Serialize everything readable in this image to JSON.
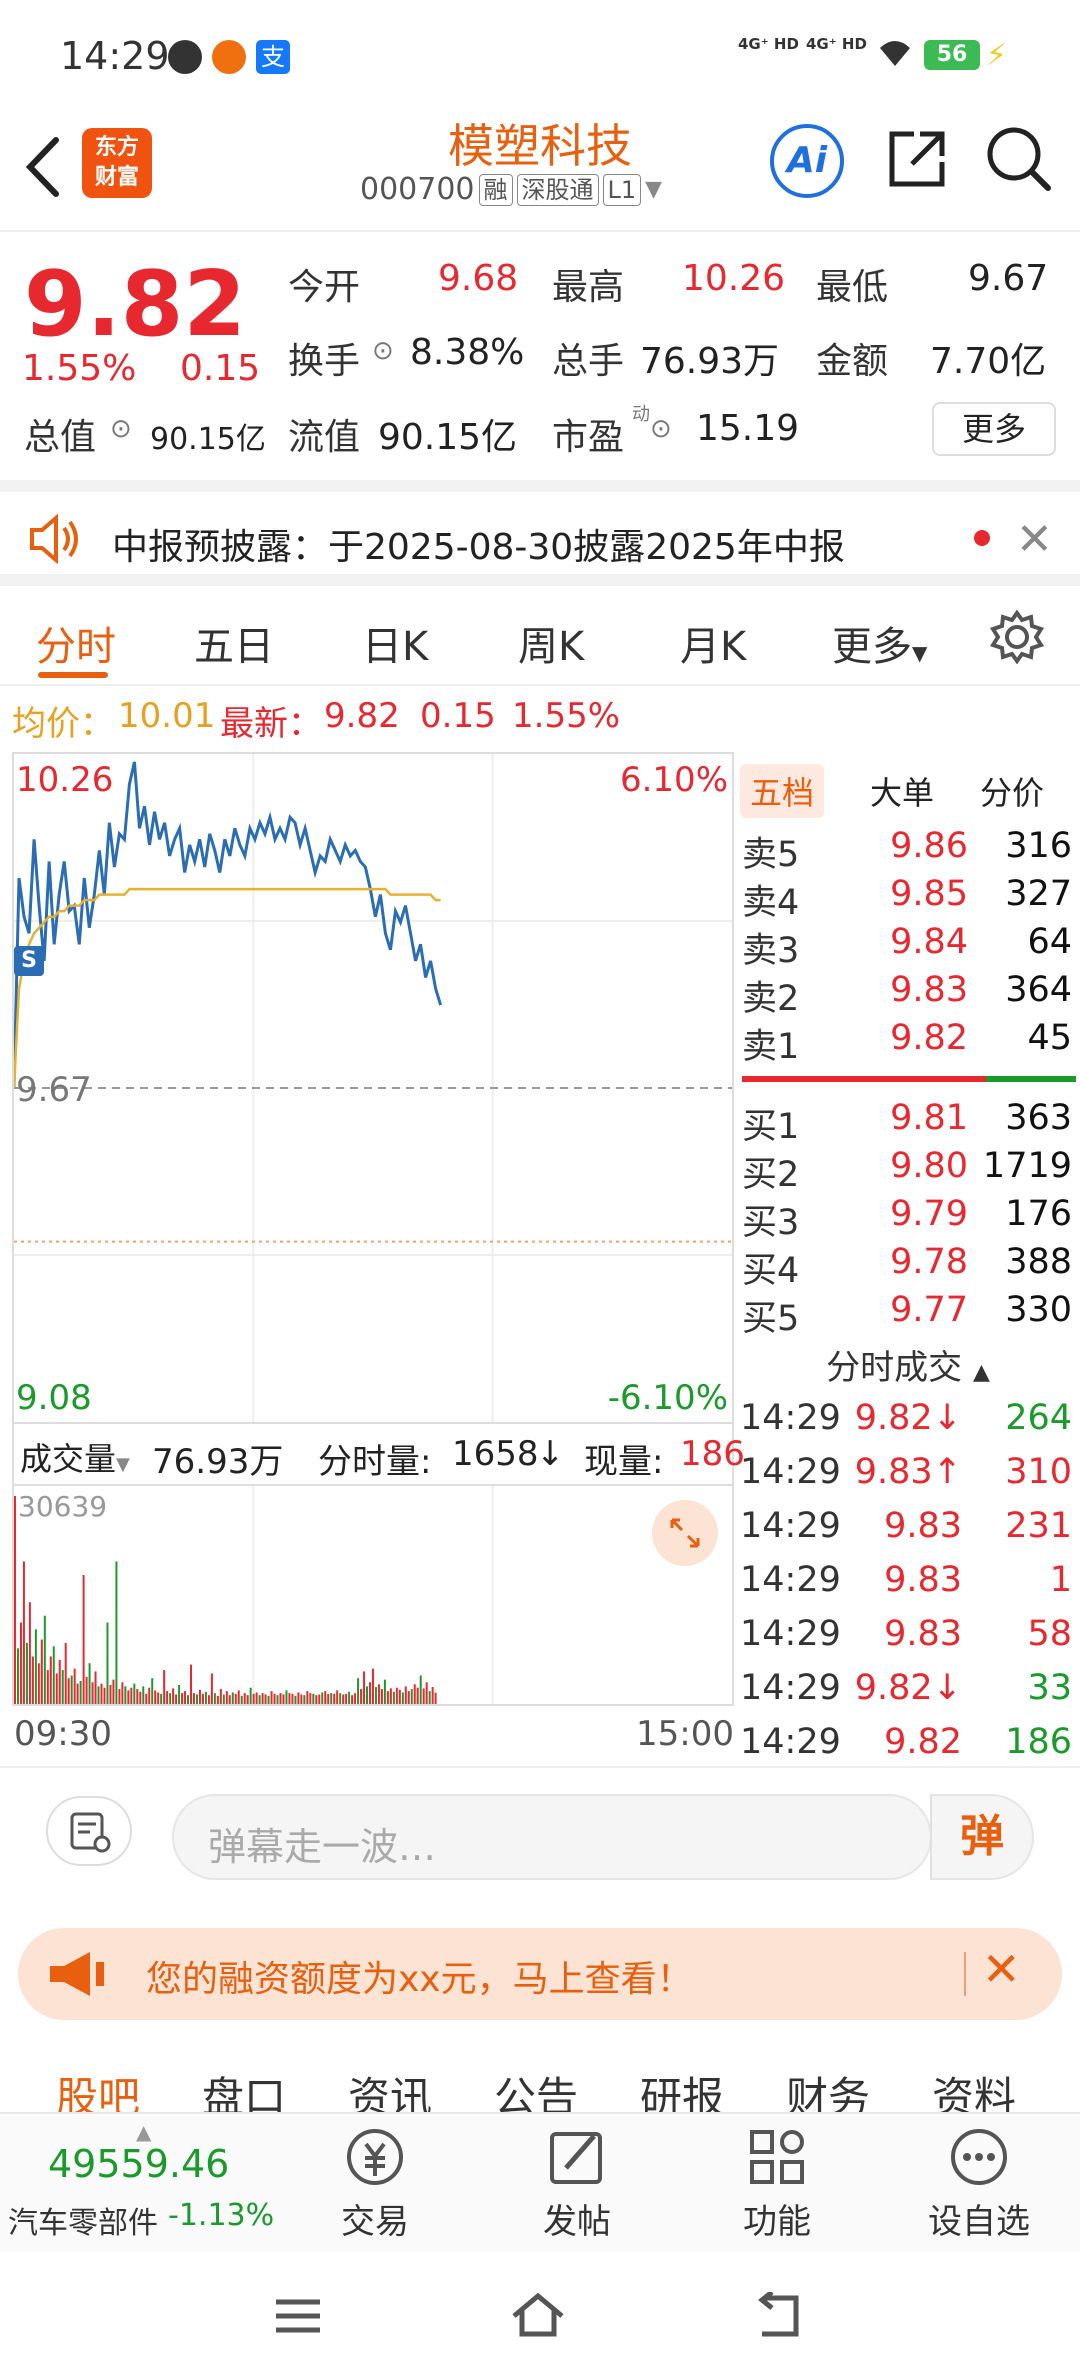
{
  "status_bar": {
    "time": "14:29",
    "net1": "4G⁺ HD",
    "net2": "4G⁺ HD",
    "battery": "56"
  },
  "header": {
    "logo_text_1": "东方",
    "logo_text_2": "财富",
    "stock_name": "模塑科技",
    "stock_code": "000700",
    "tags": [
      "融",
      "深股通",
      "L1"
    ],
    "icons": [
      "back-arrow-icon",
      "ai-icon",
      "share-icon",
      "search-icon"
    ]
  },
  "quote": {
    "price": "9.82",
    "change_pct": "1.55%",
    "change": "0.15",
    "open_label": "今开",
    "open": "9.68",
    "high_label": "最高",
    "high": "10.26",
    "low_label": "最低",
    "low": "9.67",
    "turnover_label": "换手",
    "turnover": "8.38%",
    "volume_label": "总手",
    "volume": "76.93万",
    "amount_label": "金额",
    "amount": "7.70亿",
    "mcap_label": "总值",
    "mcap": "90.15亿",
    "float_label": "流值",
    "float": "90.15亿",
    "pe_label": "市盈",
    "pe_sup": "动",
    "pe": "15.19",
    "more_label": "更多"
  },
  "notice": {
    "text": "中报预披露：于2025-08-30披露2025年中报"
  },
  "tabs": {
    "items": [
      "分时",
      "五日",
      "日K",
      "周K",
      "月K",
      "更多"
    ],
    "active": "分时"
  },
  "avg_line": {
    "avg_label": "均价：",
    "avg": "10.01",
    "latest_label": "最新：",
    "latest": "9.82",
    "change": "0.15",
    "change_pct": "1.55%"
  },
  "chart_data": {
    "type": "line",
    "xlabel": "",
    "ylabel": "",
    "x_ticks": [
      "09:30",
      "15:00"
    ],
    "y_max": 10.26,
    "y_min": 9.08,
    "y_max_pct": "6.10%",
    "y_min_pct": "-6.10%",
    "prev_close": 9.67,
    "price_max_label": "10.26",
    "price_min_label": "9.08",
    "prev_close_label": "9.67",
    "series": [
      {
        "values": [
          9.67,
          10.05,
          9.98,
          9.95,
          10.12,
          10.0,
          9.9,
          10.08,
          9.93,
          10.02,
          10.08,
          9.99,
          10.0,
          9.93,
          10.05,
          9.96,
          10.02,
          10.1,
          10.02,
          10.15,
          10.07,
          10.13,
          10.12,
          10.22,
          10.26,
          10.14,
          10.18,
          10.11,
          10.17,
          10.12,
          10.15,
          10.09,
          10.12,
          10.14,
          10.06,
          10.11,
          10.08,
          10.12,
          10.07,
          10.13,
          10.1,
          10.06,
          10.12,
          10.09,
          10.14,
          10.11,
          10.09,
          10.14,
          10.12,
          10.15,
          10.13,
          10.16,
          10.12,
          10.14,
          10.12,
          10.16,
          10.15,
          10.11,
          10.14,
          10.1,
          10.06,
          10.09,
          10.08,
          10.12,
          10.1,
          10.08,
          10.11,
          10.09,
          10.1,
          10.08,
          10.07,
          10.03,
          9.98,
          10.02,
          9.95,
          9.92,
          9.99,
          9.97,
          10.0,
          9.95,
          9.9,
          9.93,
          9.87,
          9.9,
          9.85,
          9.82
        ]
      },
      {
        "values": [
          9.67,
          9.85,
          9.9,
          9.93,
          9.95,
          9.96,
          9.97,
          9.98,
          9.98,
          9.99,
          9.99,
          10.0,
          10.0,
          10.0,
          10.01,
          10.01,
          10.01,
          10.02,
          10.02,
          10.02,
          10.02,
          10.02,
          10.02,
          10.03,
          10.03,
          10.03,
          10.03,
          10.03,
          10.03,
          10.03,
          10.03,
          10.03,
          10.03,
          10.03,
          10.03,
          10.03,
          10.03,
          10.03,
          10.03,
          10.03,
          10.03,
          10.03,
          10.03,
          10.03,
          10.03,
          10.03,
          10.03,
          10.03,
          10.03,
          10.03,
          10.03,
          10.03,
          10.03,
          10.03,
          10.03,
          10.03,
          10.03,
          10.03,
          10.03,
          10.03,
          10.03,
          10.03,
          10.03,
          10.03,
          10.03,
          10.03,
          10.03,
          10.03,
          10.03,
          10.03,
          10.03,
          10.03,
          10.03,
          10.03,
          10.03,
          10.02,
          10.02,
          10.02,
          10.02,
          10.02,
          10.02,
          10.02,
          10.02,
          10.02,
          10.01,
          10.01
        ]
      }
    ],
    "colors": {
      "price": "#2a6db5",
      "avg": "#e8b030",
      "up": "#e8282f",
      "down": "#1a9a2a"
    }
  },
  "volume": {
    "label": "成交量",
    "total": "76.93万",
    "minute_label": "分时量:",
    "minute": "1658",
    "current_label": "现量:",
    "current": "186",
    "max_label": "30639",
    "bars": [
      30639,
      8200,
      12000,
      21000,
      9000,
      15000,
      7000,
      11000,
      6000,
      9500,
      13000,
      5000,
      7000,
      8500,
      4500,
      6500,
      5000,
      9000,
      3800,
      4200,
      5200,
      3000,
      3400,
      19000,
      4000,
      6000,
      3200,
      4800,
      2600,
      3000,
      2400,
      12000,
      2800,
      3600,
      21000,
      2200,
      3200,
      2600,
      2000,
      2400,
      3000,
      2200,
      1800,
      2600,
      1500,
      2400,
      3800,
      2000,
      1700,
      1500,
      5000,
      1900,
      1600,
      2300,
      1400,
      2800,
      1600,
      1900,
      1300,
      5800,
      1600,
      1400,
      2100,
      1500,
      1800,
      1300,
      4500,
      1600,
      1200,
      2200,
      1400,
      1900,
      1300,
      1700,
      1500,
      2000,
      1200,
      1600,
      1300,
      2400,
      1500,
      1700,
      1300,
      1600,
      1400,
      1200,
      1900,
      1500,
      1300,
      1600,
      1400,
      2000,
      1600,
      1500,
      1200,
      1700,
      1400,
      1300,
      1900,
      1600,
      1500,
      1300,
      1400,
      1700,
      1900,
      1500,
      1600,
      1500,
      2000,
      1600,
      1400,
      1500,
      1800,
      1300,
      1600,
      3800,
      2200,
      4800,
      2600,
      3200,
      5200,
      2500,
      2900,
      2200,
      3600,
      1900,
      2300,
      1800,
      2400,
      2100,
      1700,
      2600,
      1900,
      2200,
      2900,
      2400,
      4200,
      2300,
      3200,
      1900,
      2500,
      1658
    ]
  },
  "order_book": {
    "tabs": [
      "五档",
      "大单",
      "分价"
    ],
    "asks": [
      {
        "label": "卖5",
        "price": "9.86",
        "vol": "316"
      },
      {
        "label": "卖4",
        "price": "9.85",
        "vol": "327"
      },
      {
        "label": "卖3",
        "price": "9.84",
        "vol": "64"
      },
      {
        "label": "卖2",
        "price": "9.83",
        "vol": "364"
      },
      {
        "label": "卖1",
        "price": "9.82",
        "vol": "45"
      }
    ],
    "bids": [
      {
        "label": "买1",
        "price": "9.81",
        "vol": "363"
      },
      {
        "label": "买2",
        "price": "9.80",
        "vol": "1719"
      },
      {
        "label": "买3",
        "price": "9.79",
        "vol": "176"
      },
      {
        "label": "买4",
        "price": "9.78",
        "vol": "388"
      },
      {
        "label": "买5",
        "price": "9.77",
        "vol": "330"
      }
    ],
    "trades_title": "分时成交",
    "trades": [
      {
        "time": "14:29",
        "price": "9.82↓",
        "vol": "264",
        "pc": "red",
        "vc": "green"
      },
      {
        "time": "14:29",
        "price": "9.83↑",
        "vol": "310",
        "pc": "red",
        "vc": "red"
      },
      {
        "time": "14:29",
        "price": "9.83",
        "vol": "231",
        "pc": "red",
        "vc": "red"
      },
      {
        "time": "14:29",
        "price": "9.83",
        "vol": "1",
        "pc": "red",
        "vc": "red"
      },
      {
        "time": "14:29",
        "price": "9.83",
        "vol": "58",
        "pc": "red",
        "vc": "red"
      },
      {
        "time": "14:29",
        "price": "9.82↓",
        "vol": "33",
        "pc": "red",
        "vc": "green"
      },
      {
        "time": "14:29",
        "price": "9.82",
        "vol": "186",
        "pc": "red",
        "vc": "green"
      }
    ]
  },
  "comment": {
    "placeholder": "弹幕走一波…",
    "send_label": "弹"
  },
  "promo": {
    "text": "您的融资额度为xx元，马上查看！"
  },
  "sub_tabs": {
    "items": [
      "股吧",
      "盘口",
      "资讯",
      "公告",
      "研报",
      "财务",
      "资料"
    ],
    "active": "股吧"
  },
  "toolbar": {
    "index_value": "49559.46",
    "sector": "汽车零部件",
    "sector_change": "-1.13%",
    "items": [
      "交易",
      "发帖",
      "功能",
      "设自选"
    ]
  }
}
